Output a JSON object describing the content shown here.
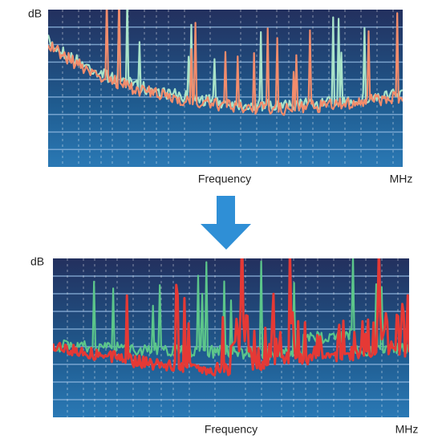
{
  "panels": [
    {
      "y_label": "dB",
      "x_label": "Frequency",
      "unit": "MHz"
    },
    {
      "y_label": "dB",
      "x_label": "Frequency",
      "unit": "MHz"
    }
  ]
}
